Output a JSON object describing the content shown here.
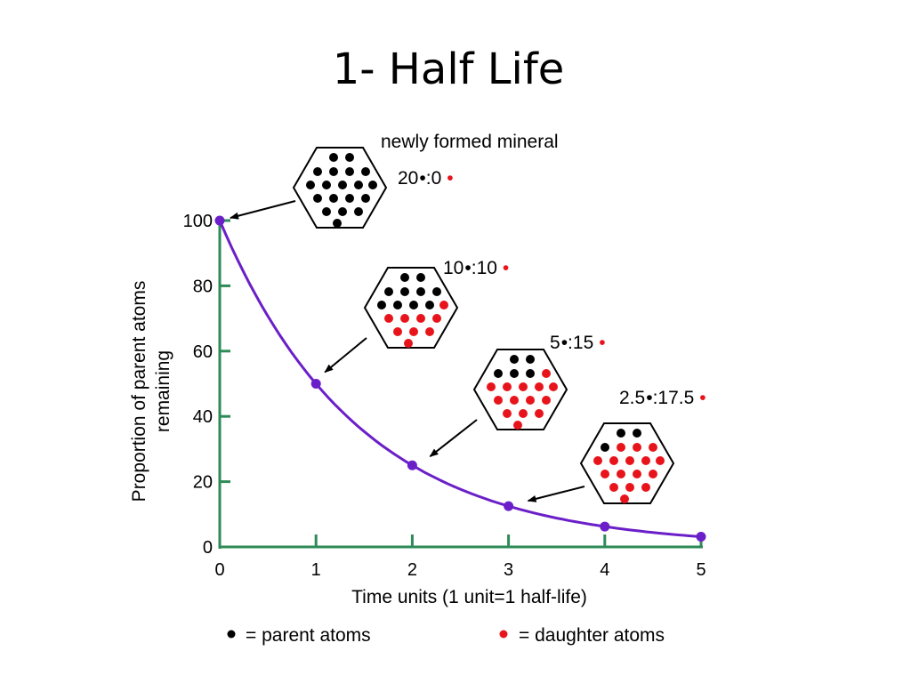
{
  "slide": {
    "title": "1- Half Life"
  },
  "colors": {
    "curve": "#6b1fc8",
    "axis": "#2e8b57",
    "parent": "#000000",
    "daughter": "#e8141c"
  },
  "chart_data": {
    "type": "line",
    "title": "",
    "xlabel": "Time units (1 unit=1 half-life)",
    "ylabel": [
      "Proportion of parent atoms",
      "remaining"
    ],
    "xlim": [
      0,
      5
    ],
    "ylim": [
      0,
      100
    ],
    "x_ticks": [
      "0",
      "1",
      "2",
      "3",
      "4",
      "5"
    ],
    "y_ticks": [
      "0",
      "20",
      "40",
      "60",
      "80",
      "100"
    ],
    "grid": false,
    "series": [
      {
        "x": [
          0,
          1,
          2,
          3,
          4,
          5
        ],
        "values": [
          100,
          50,
          25,
          12.5,
          6.25,
          3.125
        ]
      }
    ],
    "annotations": [
      {
        "label": "newly formed mineral",
        "parent_text": "20",
        "sep": ":",
        "daughter_text": "0",
        "x": 0,
        "parent": 20,
        "daughter": 0
      },
      {
        "label": "",
        "parent_text": "10",
        "sep": ":",
        "daughter_text": "10",
        "x": 1,
        "parent": 10,
        "daughter": 10
      },
      {
        "label": "",
        "parent_text": "5",
        "sep": ":",
        "daughter_text": "15",
        "x": 2,
        "parent": 5,
        "daughter": 15
      },
      {
        "label": "",
        "parent_text": "2.5",
        "sep": ":",
        "daughter_text": "17.5",
        "x": 3,
        "parent": 2.5,
        "daughter": 17.5
      }
    ],
    "legend": {
      "parent": "= parent atoms",
      "daughter": "= daughter atoms"
    }
  }
}
